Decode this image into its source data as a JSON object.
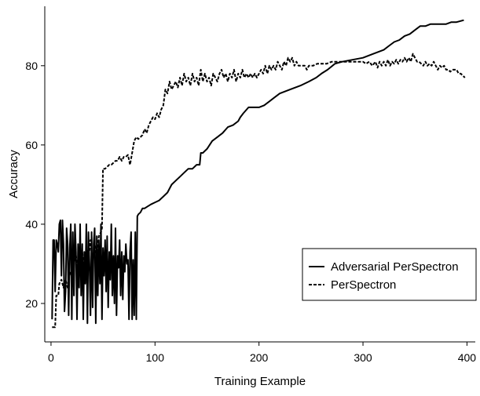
{
  "chart_data": {
    "type": "line",
    "title": "",
    "xlabel": "Training Example",
    "ylabel": "Accuracy",
    "xlim": [
      -6,
      408
    ],
    "ylim": [
      10.3,
      95
    ],
    "x_ticks": [
      0,
      100,
      200,
      300,
      400
    ],
    "y_ticks": [
      20,
      40,
      60,
      80
    ],
    "grid": false,
    "legend_position": "bottom-right",
    "series": [
      {
        "name": "Adversarial PerSpectron",
        "style": "solid",
        "color": "#000000",
        "points": [
          [
            1,
            16
          ],
          [
            2,
            36
          ],
          [
            3,
            36
          ],
          [
            4,
            23
          ],
          [
            5,
            36
          ],
          [
            6,
            35
          ],
          [
            7,
            33
          ],
          [
            8,
            40
          ],
          [
            9,
            41
          ],
          [
            10,
            27
          ],
          [
            11,
            41
          ],
          [
            12,
            35
          ],
          [
            13,
            18
          ],
          [
            14,
            23
          ],
          [
            15,
            39
          ],
          [
            16,
            35
          ],
          [
            17,
            17
          ],
          [
            18,
            34
          ],
          [
            19,
            40
          ],
          [
            20,
            16
          ],
          [
            21,
            38
          ],
          [
            22,
            22
          ],
          [
            23,
            40
          ],
          [
            24,
            33
          ],
          [
            25,
            16
          ],
          [
            26,
            35
          ],
          [
            27,
            24
          ],
          [
            28,
            40
          ],
          [
            29,
            22
          ],
          [
            30,
            35
          ],
          [
            31,
            16
          ],
          [
            32,
            33
          ],
          [
            33,
            25
          ],
          [
            34,
            40
          ],
          [
            35,
            15
          ],
          [
            36,
            38
          ],
          [
            37,
            30
          ],
          [
            38,
            17
          ],
          [
            39,
            38
          ],
          [
            40,
            19
          ],
          [
            41,
            35
          ],
          [
            42,
            39
          ],
          [
            43,
            15
          ],
          [
            44,
            37
          ],
          [
            45,
            22
          ],
          [
            46,
            36
          ],
          [
            47,
            25
          ],
          [
            48,
            40
          ],
          [
            49,
            16
          ],
          [
            50,
            34
          ],
          [
            51,
            27
          ],
          [
            52,
            36
          ],
          [
            53,
            23
          ],
          [
            54,
            37
          ],
          [
            55,
            19
          ],
          [
            56,
            33
          ],
          [
            57,
            26
          ],
          [
            58,
            40
          ],
          [
            59,
            22
          ],
          [
            60,
            32
          ],
          [
            61,
            20
          ],
          [
            62,
            39
          ],
          [
            63,
            17
          ],
          [
            64,
            32
          ],
          [
            65,
            29
          ],
          [
            66,
            36
          ],
          [
            67,
            22
          ],
          [
            68,
            33
          ],
          [
            69,
            21
          ],
          [
            70,
            32
          ],
          [
            71,
            28
          ],
          [
            72,
            35
          ],
          [
            73,
            30
          ],
          [
            74,
            31
          ],
          [
            75,
            16
          ],
          [
            76,
            33
          ],
          [
            77,
            38
          ],
          [
            78,
            16
          ],
          [
            79,
            31
          ],
          [
            80,
            17
          ],
          [
            81,
            38
          ],
          [
            82,
            16
          ],
          [
            83,
            42
          ],
          [
            84,
            42.5
          ],
          [
            86,
            43
          ],
          [
            88,
            44
          ],
          [
            90,
            44
          ],
          [
            93,
            44.5
          ],
          [
            96,
            45
          ],
          [
            100,
            45.5
          ],
          [
            104,
            46
          ],
          [
            108,
            47
          ],
          [
            112,
            48
          ],
          [
            116,
            50
          ],
          [
            120,
            51
          ],
          [
            124,
            52
          ],
          [
            128,
            53
          ],
          [
            132,
            54
          ],
          [
            136,
            54
          ],
          [
            140,
            55
          ],
          [
            143,
            55
          ],
          [
            144,
            58
          ],
          [
            146,
            58
          ],
          [
            150,
            59
          ],
          [
            155,
            61
          ],
          [
            160,
            62
          ],
          [
            165,
            63
          ],
          [
            170,
            64.5
          ],
          [
            175,
            65
          ],
          [
            180,
            66
          ],
          [
            182,
            67
          ],
          [
            185,
            68
          ],
          [
            190,
            69.5
          ],
          [
            200,
            69.5
          ],
          [
            205,
            70
          ],
          [
            210,
            71
          ],
          [
            215,
            72
          ],
          [
            220,
            73
          ],
          [
            230,
            74
          ],
          [
            240,
            75
          ],
          [
            248,
            76
          ],
          [
            255,
            77
          ],
          [
            260,
            78
          ],
          [
            266,
            79
          ],
          [
            273,
            80.5
          ],
          [
            280,
            81
          ],
          [
            290,
            81.5
          ],
          [
            300,
            82
          ],
          [
            310,
            83
          ],
          [
            320,
            84
          ],
          [
            325,
            85
          ],
          [
            330,
            86
          ],
          [
            335,
            86.5
          ],
          [
            340,
            87.5
          ],
          [
            345,
            88
          ],
          [
            350,
            89
          ],
          [
            355,
            90
          ],
          [
            360,
            90
          ],
          [
            365,
            90.5
          ],
          [
            370,
            90.5
          ],
          [
            375,
            90.5
          ],
          [
            380,
            90.5
          ],
          [
            385,
            91
          ],
          [
            390,
            91
          ],
          [
            397,
            91.5
          ]
        ]
      },
      {
        "name": "PerSpectron",
        "style": "dashed",
        "color": "#000000",
        "points": [
          [
            1,
            14
          ],
          [
            3,
            14
          ],
          [
            4,
            14
          ],
          [
            5,
            22
          ],
          [
            7,
            22
          ],
          [
            8,
            25
          ],
          [
            10,
            26
          ],
          [
            12,
            24
          ],
          [
            14,
            26
          ],
          [
            16,
            24
          ],
          [
            18,
            28
          ],
          [
            20,
            27
          ],
          [
            22,
            30
          ],
          [
            24,
            32
          ],
          [
            26,
            28
          ],
          [
            28,
            31
          ],
          [
            30,
            33
          ],
          [
            32,
            29
          ],
          [
            34,
            34
          ],
          [
            36,
            31
          ],
          [
            38,
            36
          ],
          [
            40,
            30
          ],
          [
            42,
            35
          ],
          [
            44,
            32
          ],
          [
            46,
            37
          ],
          [
            48,
            38
          ],
          [
            49,
            39
          ],
          [
            50,
            54
          ],
          [
            52,
            54
          ],
          [
            54,
            54.5
          ],
          [
            56,
            55
          ],
          [
            58,
            55
          ],
          [
            60,
            55.5
          ],
          [
            62,
            56
          ],
          [
            64,
            56
          ],
          [
            66,
            57
          ],
          [
            68,
            56
          ],
          [
            70,
            57
          ],
          [
            72,
            57
          ],
          [
            74,
            57.5
          ],
          [
            76,
            55
          ],
          [
            78,
            58
          ],
          [
            80,
            61
          ],
          [
            82,
            62
          ],
          [
            84,
            61.5
          ],
          [
            86,
            62
          ],
          [
            88,
            62.5
          ],
          [
            90,
            64
          ],
          [
            92,
            63
          ],
          [
            94,
            65
          ],
          [
            96,
            66
          ],
          [
            98,
            67
          ],
          [
            100,
            66.5
          ],
          [
            102,
            68
          ],
          [
            104,
            67
          ],
          [
            106,
            69
          ],
          [
            108,
            70
          ],
          [
            110,
            74
          ],
          [
            112,
            73
          ],
          [
            114,
            76
          ],
          [
            116,
            74
          ],
          [
            118,
            75
          ],
          [
            120,
            76
          ],
          [
            122,
            74.5
          ],
          [
            124,
            77
          ],
          [
            126,
            75
          ],
          [
            128,
            78
          ],
          [
            130,
            76
          ],
          [
            132,
            77
          ],
          [
            134,
            75
          ],
          [
            136,
            78
          ],
          [
            138,
            76
          ],
          [
            140,
            77
          ],
          [
            142,
            75
          ],
          [
            144,
            79
          ],
          [
            146,
            76
          ],
          [
            148,
            78
          ],
          [
            150,
            76
          ],
          [
            152,
            77
          ],
          [
            154,
            75
          ],
          [
            156,
            78
          ],
          [
            158,
            77
          ],
          [
            160,
            76
          ],
          [
            162,
            78
          ],
          [
            164,
            79
          ],
          [
            166,
            77
          ],
          [
            168,
            78
          ],
          [
            170,
            76
          ],
          [
            172,
            78
          ],
          [
            174,
            77
          ],
          [
            176,
            79
          ],
          [
            178,
            76
          ],
          [
            180,
            78
          ],
          [
            182,
            77
          ],
          [
            184,
            79
          ],
          [
            186,
            77
          ],
          [
            188,
            78
          ],
          [
            190,
            77
          ],
          [
            192,
            78
          ],
          [
            194,
            77
          ],
          [
            196,
            78
          ],
          [
            198,
            77
          ],
          [
            200,
            78
          ],
          [
            202,
            79
          ],
          [
            204,
            78
          ],
          [
            206,
            80
          ],
          [
            208,
            78
          ],
          [
            210,
            80
          ],
          [
            212,
            79
          ],
          [
            214,
            80
          ],
          [
            216,
            79
          ],
          [
            218,
            81
          ],
          [
            220,
            80
          ],
          [
            222,
            79
          ],
          [
            224,
            81
          ],
          [
            226,
            80
          ],
          [
            228,
            82
          ],
          [
            230,
            81
          ],
          [
            232,
            82
          ],
          [
            234,
            80
          ],
          [
            236,
            81
          ],
          [
            238,
            80
          ],
          [
            240,
            80
          ],
          [
            242,
            80
          ],
          [
            244,
            80
          ],
          [
            246,
            79
          ],
          [
            248,
            80
          ],
          [
            252,
            80
          ],
          [
            256,
            80.5
          ],
          [
            260,
            80.5
          ],
          [
            265,
            80.5
          ],
          [
            270,
            81
          ],
          [
            275,
            81
          ],
          [
            280,
            81
          ],
          [
            285,
            81
          ],
          [
            290,
            81
          ],
          [
            295,
            81
          ],
          [
            300,
            81
          ],
          [
            303,
            80.5
          ],
          [
            306,
            81
          ],
          [
            309,
            80
          ],
          [
            312,
            81
          ],
          [
            314,
            79.5
          ],
          [
            316,
            81
          ],
          [
            318,
            80
          ],
          [
            320,
            81
          ],
          [
            322,
            80
          ],
          [
            324,
            81.5
          ],
          [
            326,
            80
          ],
          [
            328,
            81
          ],
          [
            330,
            80.5
          ],
          [
            332,
            81.5
          ],
          [
            334,
            80.5
          ],
          [
            336,
            81.5
          ],
          [
            338,
            81
          ],
          [
            340,
            82
          ],
          [
            342,
            81
          ],
          [
            344,
            82
          ],
          [
            346,
            81
          ],
          [
            348,
            83
          ],
          [
            350,
            82
          ],
          [
            352,
            81
          ],
          [
            354,
            81
          ],
          [
            356,
            80.5
          ],
          [
            358,
            80
          ],
          [
            360,
            81
          ],
          [
            362,
            80
          ],
          [
            364,
            80.5
          ],
          [
            366,
            80
          ],
          [
            368,
            81
          ],
          [
            370,
            80
          ],
          [
            372,
            79
          ],
          [
            374,
            80
          ],
          [
            376,
            79.5
          ],
          [
            378,
            80
          ],
          [
            380,
            79
          ],
          [
            382,
            79
          ],
          [
            384,
            78.5
          ],
          [
            386,
            79
          ],
          [
            388,
            79
          ],
          [
            390,
            79
          ],
          [
            392,
            78
          ],
          [
            394,
            78
          ],
          [
            396,
            77.5
          ],
          [
            398,
            77
          ]
        ]
      }
    ]
  }
}
